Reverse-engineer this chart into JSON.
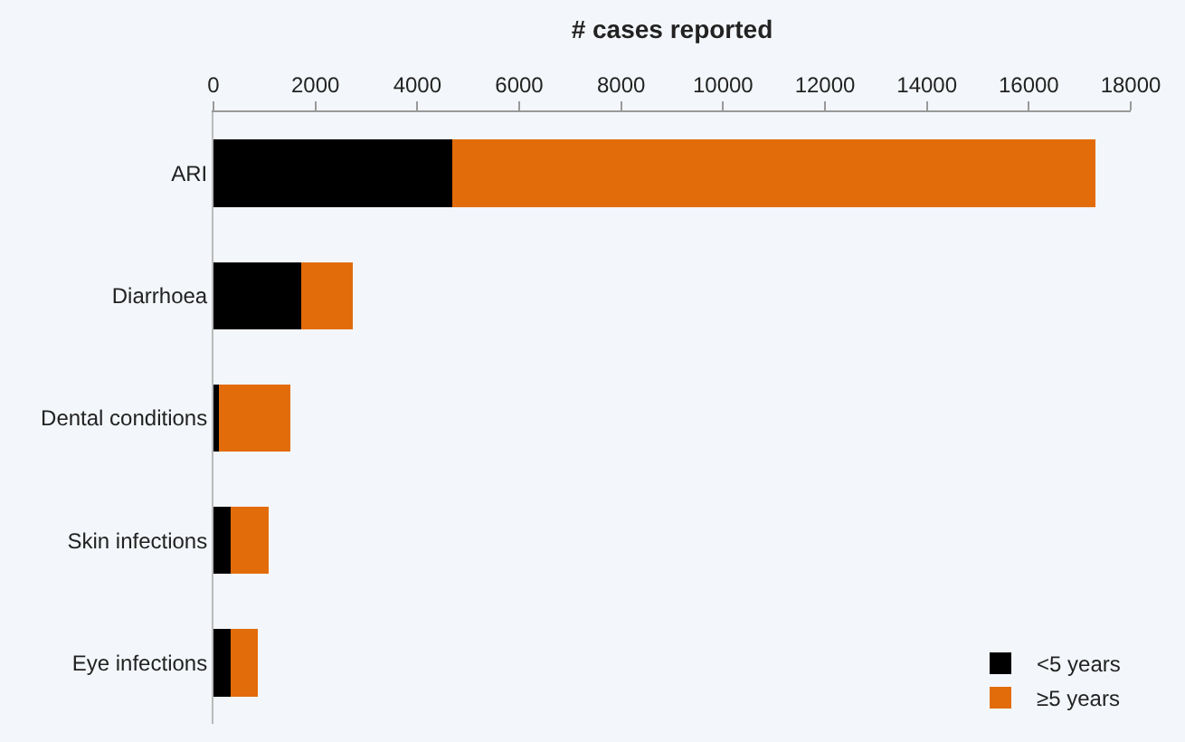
{
  "chart_data": {
    "type": "bar",
    "orientation": "horizontal",
    "stacked": true,
    "xlabel": "# cases reported",
    "categories": [
      "ARI",
      "Diarrhoea",
      "Dental conditions",
      "Skin infections",
      "Eye infections"
    ],
    "series": [
      {
        "name": "<5 years",
        "color": "#000000",
        "values": [
          4680,
          1730,
          110,
          330,
          330
        ]
      },
      {
        "name": "≥5 years",
        "color": "#e36c0a",
        "values": [
          12620,
          1000,
          1390,
          750,
          535
        ]
      }
    ],
    "xlim": [
      0,
      18000
    ],
    "xticks": [
      0,
      2000,
      4000,
      6000,
      8000,
      10000,
      12000,
      14000,
      16000,
      18000
    ],
    "grid": false,
    "legend": "bottom right"
  }
}
